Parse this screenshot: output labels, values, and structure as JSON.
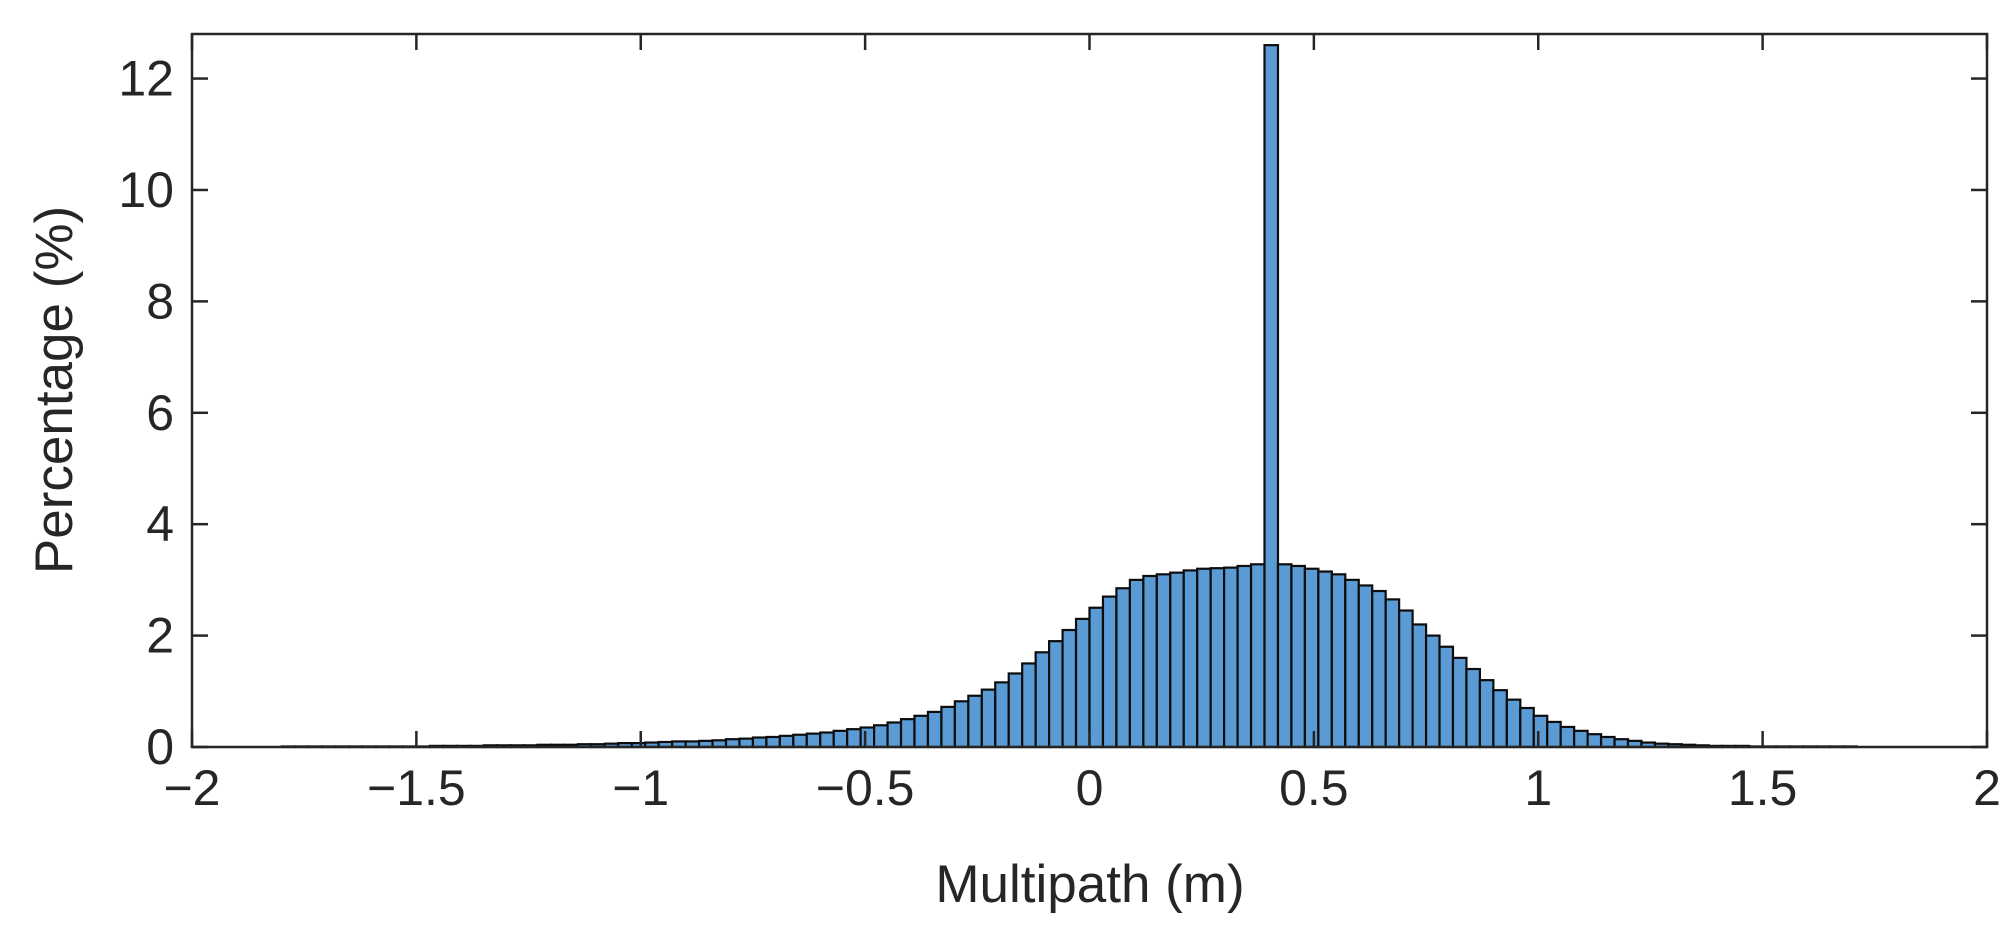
{
  "chart_data": {
    "type": "bar",
    "subtype": "histogram",
    "title": "",
    "xlabel": "Multipath (m)",
    "ylabel": "Percentage (%)",
    "xlim": [
      -2,
      2
    ],
    "ylim": [
      0,
      12.8
    ],
    "xticks": [
      -2,
      -1.5,
      -1,
      -0.5,
      0,
      0.5,
      1,
      1.5,
      2
    ],
    "xtick_labels": [
      "−2",
      "−1.5",
      "−1",
      "−0.5",
      "0",
      "0.5",
      "1",
      "1.5",
      "2"
    ],
    "yticks": [
      0,
      2,
      4,
      6,
      8,
      10,
      12
    ],
    "ytick_labels": [
      "0",
      "2",
      "4",
      "6",
      "8",
      "10",
      "12"
    ],
    "grid": false,
    "legend": "none",
    "bar_color": "#5b9bd5",
    "edge_color": "#0d0d0d",
    "bin_width": 0.03,
    "x_start": -1.98,
    "values": [
      0.0,
      0.0,
      0.0,
      0.0,
      0.0,
      0.0,
      0.01,
      0.01,
      0.01,
      0.01,
      0.01,
      0.01,
      0.01,
      0.01,
      0.01,
      0.01,
      0.01,
      0.02,
      0.02,
      0.02,
      0.02,
      0.03,
      0.03,
      0.03,
      0.03,
      0.04,
      0.04,
      0.04,
      0.05,
      0.05,
      0.06,
      0.07,
      0.07,
      0.08,
      0.09,
      0.1,
      0.1,
      0.11,
      0.12,
      0.14,
      0.15,
      0.17,
      0.18,
      0.2,
      0.22,
      0.24,
      0.26,
      0.29,
      0.32,
      0.35,
      0.39,
      0.44,
      0.5,
      0.56,
      0.63,
      0.72,
      0.82,
      0.92,
      1.03,
      1.16,
      1.32,
      1.5,
      1.7,
      1.9,
      2.1,
      2.3,
      2.5,
      2.7,
      2.85,
      3.0,
      3.07,
      3.1,
      3.13,
      3.17,
      3.2,
      3.21,
      3.22,
      3.25,
      3.28,
      12.6,
      3.28,
      3.25,
      3.2,
      3.15,
      3.1,
      3.0,
      2.9,
      2.8,
      2.65,
      2.45,
      2.2,
      2.0,
      1.8,
      1.6,
      1.4,
      1.2,
      1.02,
      0.85,
      0.7,
      0.56,
      0.45,
      0.36,
      0.29,
      0.23,
      0.18,
      0.14,
      0.11,
      0.08,
      0.06,
      0.05,
      0.04,
      0.03,
      0.02,
      0.02,
      0.02,
      0.01,
      0.01,
      0.01,
      0.01,
      0.01,
      0.01,
      0.01,
      0.01,
      0.0,
      0.0,
      0.0,
      0.0,
      0.0,
      0.0,
      0.0,
      0.0,
      0.0,
      0.0
    ]
  }
}
